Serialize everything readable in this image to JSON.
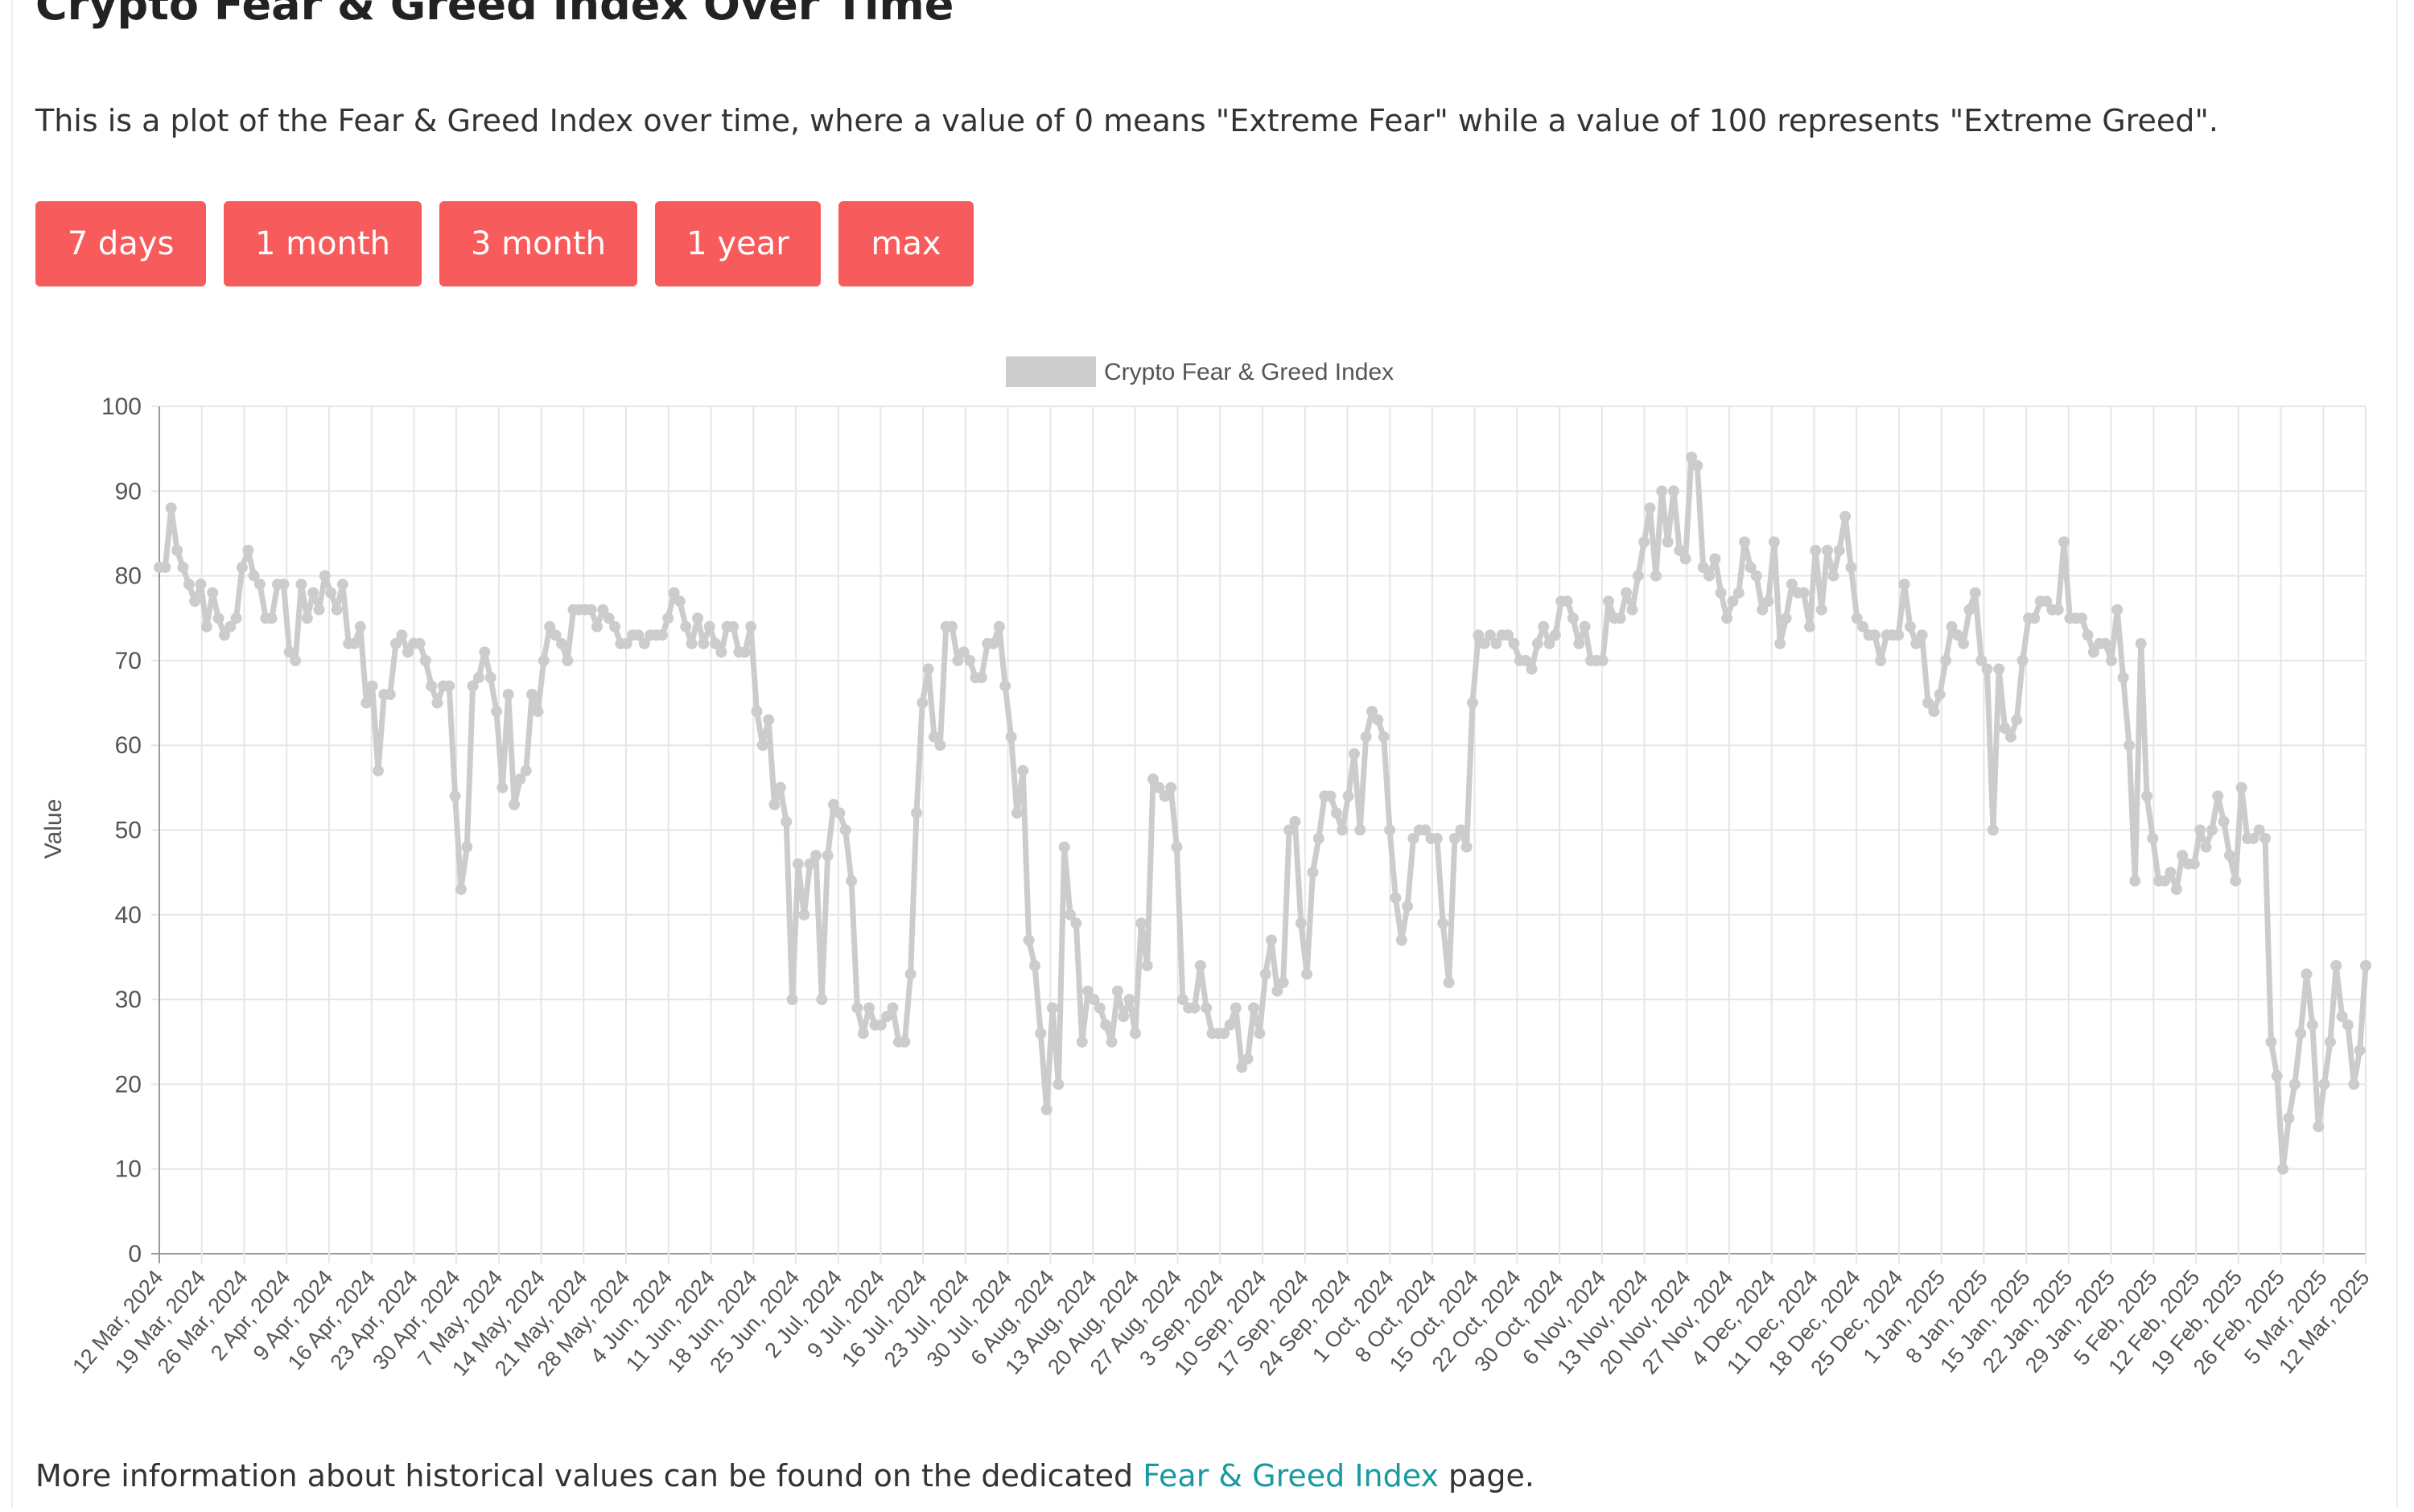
{
  "header": {
    "title": "Crypto Fear & Greed Index Over Time",
    "description": "This is a plot of the Fear & Greed Index over time, where a value of 0 means \"Extreme Fear\" while a value of 100 represents \"Extreme Greed\"."
  },
  "range_buttons": [
    {
      "label": "7 days"
    },
    {
      "label": "1 month"
    },
    {
      "label": "3 month"
    },
    {
      "label": "1 year"
    },
    {
      "label": "max"
    }
  ],
  "footer": {
    "prefix": "More information about historical values can be found on the dedicated ",
    "link_text": "Fear & Greed Index",
    "suffix": " page."
  },
  "chart_data": {
    "type": "line",
    "title": "",
    "xlabel": "",
    "ylabel": "Value",
    "ylim": [
      0,
      100
    ],
    "yticks": [
      0,
      10,
      20,
      30,
      40,
      50,
      60,
      70,
      80,
      90,
      100
    ],
    "grid": true,
    "legend_position": "top-center",
    "series_color": "#cccccc",
    "x_ticks": [
      "12 Mar, 2024",
      "19 Mar, 2024",
      "26 Mar, 2024",
      "2 Apr, 2024",
      "9 Apr, 2024",
      "16 Apr, 2024",
      "23 Apr, 2024",
      "30 Apr, 2024",
      "7 May, 2024",
      "14 May, 2024",
      "21 May, 2024",
      "28 May, 2024",
      "4 Jun, 2024",
      "11 Jun, 2024",
      "18 Jun, 2024",
      "25 Jun, 2024",
      "2 Jul, 2024",
      "9 Jul, 2024",
      "16 Jul, 2024",
      "23 Jul, 2024",
      "30 Jul, 2024",
      "6 Aug, 2024",
      "13 Aug, 2024",
      "20 Aug, 2024",
      "27 Aug, 2024",
      "3 Sep, 2024",
      "10 Sep, 2024",
      "17 Sep, 2024",
      "24 Sep, 2024",
      "1 Oct, 2024",
      "8 Oct, 2024",
      "15 Oct, 2024",
      "22 Oct, 2024",
      "30 Oct, 2024",
      "6 Nov, 2024",
      "13 Nov, 2024",
      "20 Nov, 2024",
      "27 Nov, 2024",
      "4 Dec, 2024",
      "11 Dec, 2024",
      "18 Dec, 2024",
      "25 Dec, 2024",
      "1 Jan, 2025",
      "8 Jan, 2025",
      "15 Jan, 2025",
      "22 Jan, 2025",
      "29 Jan, 2025",
      "5 Feb, 2025",
      "12 Feb, 2025",
      "19 Feb, 2025",
      "26 Feb, 2025",
      "5 Mar, 2025",
      "12 Mar, 2025"
    ],
    "series": [
      {
        "name": "Crypto Fear & Greed Index",
        "values": [
          81,
          81,
          88,
          83,
          81,
          79,
          77,
          79,
          74,
          78,
          75,
          73,
          74,
          75,
          81,
          83,
          80,
          79,
          75,
          75,
          79,
          79,
          71,
          70,
          79,
          75,
          78,
          76,
          80,
          78,
          76,
          79,
          72,
          72,
          74,
          65,
          67,
          57,
          66,
          66,
          72,
          73,
          71,
          72,
          72,
          70,
          67,
          65,
          67,
          67,
          54,
          43,
          48,
          67,
          68,
          71,
          68,
          64,
          55,
          66,
          53,
          56,
          57,
          66,
          64,
          70,
          74,
          73,
          72,
          70,
          76,
          76,
          76,
          76,
          74,
          76,
          75,
          74,
          72,
          72,
          73,
          73,
          72,
          73,
          73,
          73,
          75,
          78,
          77,
          74,
          72,
          75,
          72,
          74,
          72,
          71,
          74,
          74,
          71,
          71,
          74,
          64,
          60,
          63,
          53,
          55,
          51,
          30,
          46,
          40,
          46,
          47,
          30,
          47,
          53,
          52,
          50,
          44,
          29,
          26,
          29,
          27,
          27,
          28,
          29,
          25,
          25,
          33,
          52,
          65,
          69,
          61,
          60,
          74,
          74,
          70,
          71,
          70,
          68,
          68,
          72,
          72,
          74,
          67,
          61,
          52,
          57,
          37,
          34,
          26,
          17,
          29,
          20,
          48,
          40,
          39,
          25,
          31,
          30,
          29,
          27,
          25,
          31,
          28,
          30,
          26,
          39,
          34,
          56,
          55,
          54,
          55,
          48,
          30,
          29,
          29,
          34,
          29,
          26,
          26,
          26,
          27,
          29,
          22,
          23,
          29,
          26,
          33,
          37,
          31,
          32,
          50,
          51,
          39,
          33,
          45,
          49,
          54,
          54,
          52,
          50,
          54,
          59,
          50,
          61,
          64,
          63,
          61,
          50,
          42,
          37,
          41,
          49,
          50,
          50,
          49,
          49,
          39,
          32,
          49,
          50,
          48,
          65,
          73,
          72,
          73,
          72,
          73,
          73,
          72,
          70,
          70,
          69,
          72,
          74,
          72,
          73,
          77,
          77,
          75,
          72,
          74,
          70,
          70,
          70,
          77,
          75,
          75,
          78,
          76,
          80,
          84,
          88,
          80,
          90,
          84,
          90,
          83,
          82,
          94,
          93,
          81,
          80,
          82,
          78,
          75,
          77,
          78,
          84,
          81,
          80,
          76,
          77,
          84,
          72,
          75,
          79,
          78,
          78,
          74,
          83,
          76,
          83,
          80,
          83,
          87,
          81,
          75,
          74,
          73,
          73,
          70,
          73,
          73,
          73,
          79,
          74,
          72,
          73,
          65,
          64,
          66,
          70,
          74,
          73,
          72,
          76,
          78,
          70,
          69,
          50,
          69,
          62,
          61,
          63,
          70,
          75,
          75,
          77,
          77,
          76,
          76,
          84,
          75,
          75,
          75,
          73,
          71,
          72,
          72,
          70,
          76,
          68,
          60,
          44,
          72,
          54,
          49,
          44,
          44,
          45,
          43,
          47,
          46,
          46,
          50,
          48,
          50,
          54,
          51,
          47,
          44,
          55,
          49,
          49,
          50,
          49,
          25,
          21,
          10,
          16,
          20,
          26,
          33,
          27,
          15,
          20,
          25,
          34,
          28,
          27,
          20,
          24,
          34
        ]
      }
    ]
  }
}
